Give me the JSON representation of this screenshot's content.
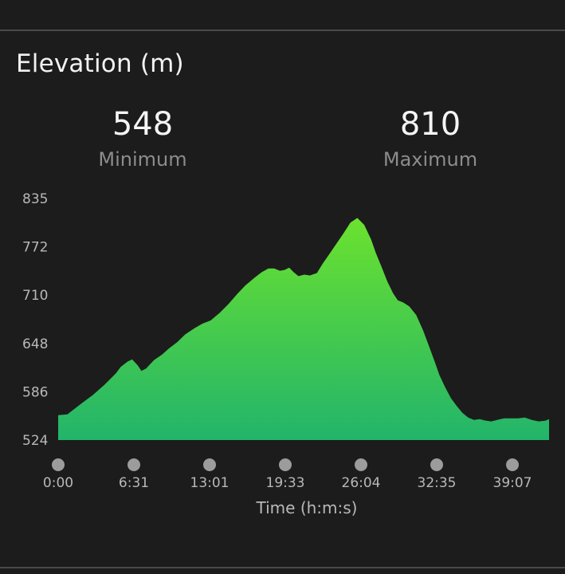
{
  "header": {
    "title": "Elevation (m)"
  },
  "stats": {
    "minimum": {
      "value": "548",
      "label": "Minimum"
    },
    "maximum": {
      "value": "810",
      "label": "Maximum"
    }
  },
  "colors": {
    "area_top": "#6be22e",
    "area_bottom": "#22b46b",
    "dot": "#9c9c9c",
    "background": "#1c1c1c"
  },
  "chart_data": {
    "type": "area",
    "title": "Elevation (m)",
    "xlabel": "Time (h:m:s)",
    "ylabel": "",
    "y_ticks": [
      "524",
      "586",
      "648",
      "710",
      "772",
      "835"
    ],
    "x_ticks": [
      "0:00",
      "6:31",
      "13:01",
      "19:33",
      "26:04",
      "32:35",
      "39:07"
    ],
    "ylim": [
      524,
      835
    ],
    "xlim_minutes": [
      0,
      42.5
    ],
    "grid": false,
    "legend": "none",
    "series": [
      {
        "x_minutes": [
          0,
          0.8,
          2,
          3,
          4,
          5,
          5.4,
          6,
          6.4,
          6.9,
          7.2,
          7.6,
          8.3,
          9,
          9.6,
          10.3,
          11,
          11.8,
          12.5,
          13.2,
          14,
          14.8,
          15.5,
          16.2,
          17,
          17.6,
          18.2,
          18.7,
          19.2,
          19.6,
          20,
          20.4,
          20.8,
          21.3,
          21.8,
          22.4,
          22.9,
          23.5,
          24.1,
          24.7,
          25.3,
          25.9,
          26.5,
          27.1,
          27.5,
          28,
          28.5,
          29,
          29.4,
          29.9,
          30.4,
          31,
          31.6,
          32.1,
          32.6,
          33,
          33.5,
          34,
          34.5,
          35,
          35.5,
          36,
          36.5,
          37,
          37.5,
          38,
          38.6,
          39.2,
          39.8,
          40.4,
          41,
          41.6,
          42.2,
          42.5
        ],
        "y_m": [
          556,
          557,
          571,
          582,
          595,
          610,
          618,
          625,
          628,
          620,
          613,
          616,
          627,
          634,
          642,
          650,
          660,
          668,
          674,
          678,
          688,
          700,
          712,
          723,
          733,
          740,
          745,
          745,
          742,
          743,
          746,
          740,
          735,
          737,
          736,
          739,
          751,
          764,
          777,
          790,
          804,
          810,
          801,
          782,
          765,
          747,
          728,
          713,
          704,
          701,
          696,
          685,
          665,
          645,
          625,
          608,
          592,
          578,
          568,
          559,
          553,
          550,
          551,
          549,
          548,
          550,
          552,
          552,
          552,
          553,
          550,
          548,
          549,
          551
        ]
      }
    ]
  }
}
